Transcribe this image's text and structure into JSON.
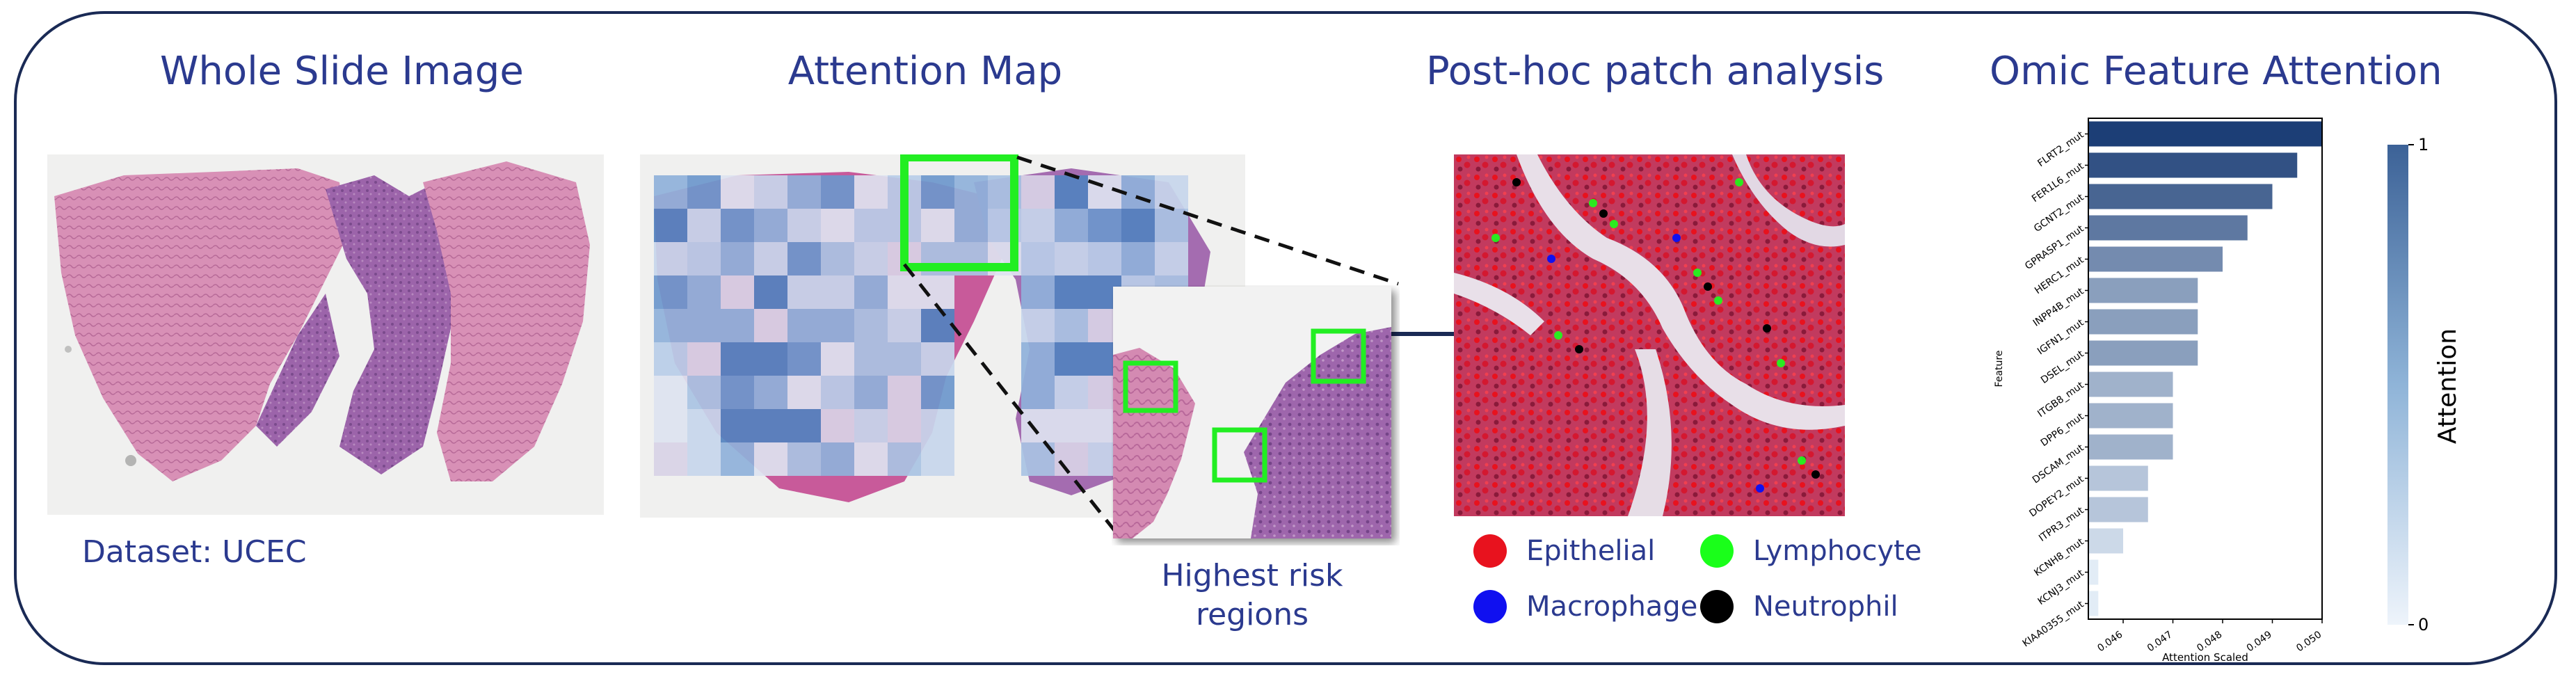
{
  "titles": {
    "wsi": "Whole Slide Image",
    "attention": "Attention Map",
    "posthoc": "Post-hoc patch analysis",
    "omic": "Omic Feature Attention"
  },
  "dataset_label": "Dataset: UCEC",
  "highest_risk_label": "Highest risk regions",
  "legend": [
    {
      "label": "Epithelial",
      "color": "#e8121e"
    },
    {
      "label": "Lymphocyte",
      "color": "#1aff1a"
    },
    {
      "label": "Macrophage",
      "color": "#1010f0"
    },
    {
      "label": "Neutrophil",
      "color": "#000000"
    }
  ],
  "colors": {
    "title": "#2b3a8f",
    "frame": "#1a2a55",
    "highlight_box": "#22ee22",
    "tissue_pink": "#d68fb5",
    "tissue_purple": "#9a62a8"
  },
  "chart_data": {
    "type": "bar",
    "orientation": "horizontal",
    "ylabel": "Feature",
    "xlabel": "Attention Scaled",
    "categories": [
      "FLRT2_mut",
      "FER1L6_mut",
      "GCNT2_mut",
      "GPRASP1_mut",
      "HERC1_mut",
      "INPP4B_mut",
      "IGFN1_mut",
      "DSEL_mut",
      "ITGB8_mut",
      "DPP6_mut",
      "DSCAM_mut",
      "DOPEY2_mut",
      "ITPR3_mut",
      "KCNH8_mut",
      "KCNJ3_mut",
      "KIAA0355_mut"
    ],
    "values": [
      0.05,
      0.0495,
      0.049,
      0.0485,
      0.048,
      0.0475,
      0.0475,
      0.0475,
      0.047,
      0.047,
      0.047,
      0.0465,
      0.0465,
      0.046,
      0.0455,
      0.0455
    ],
    "xlim": [
      0.0453,
      0.05
    ],
    "xticks": [
      "0.046",
      "0.047",
      "0.048",
      "0.049",
      "0.050"
    ],
    "xtick_values": [
      0.046,
      0.047,
      0.048,
      0.049,
      0.05
    ],
    "colorbar": {
      "label": "Attention",
      "min_label": "0",
      "max_label": "1"
    },
    "grid": false
  }
}
